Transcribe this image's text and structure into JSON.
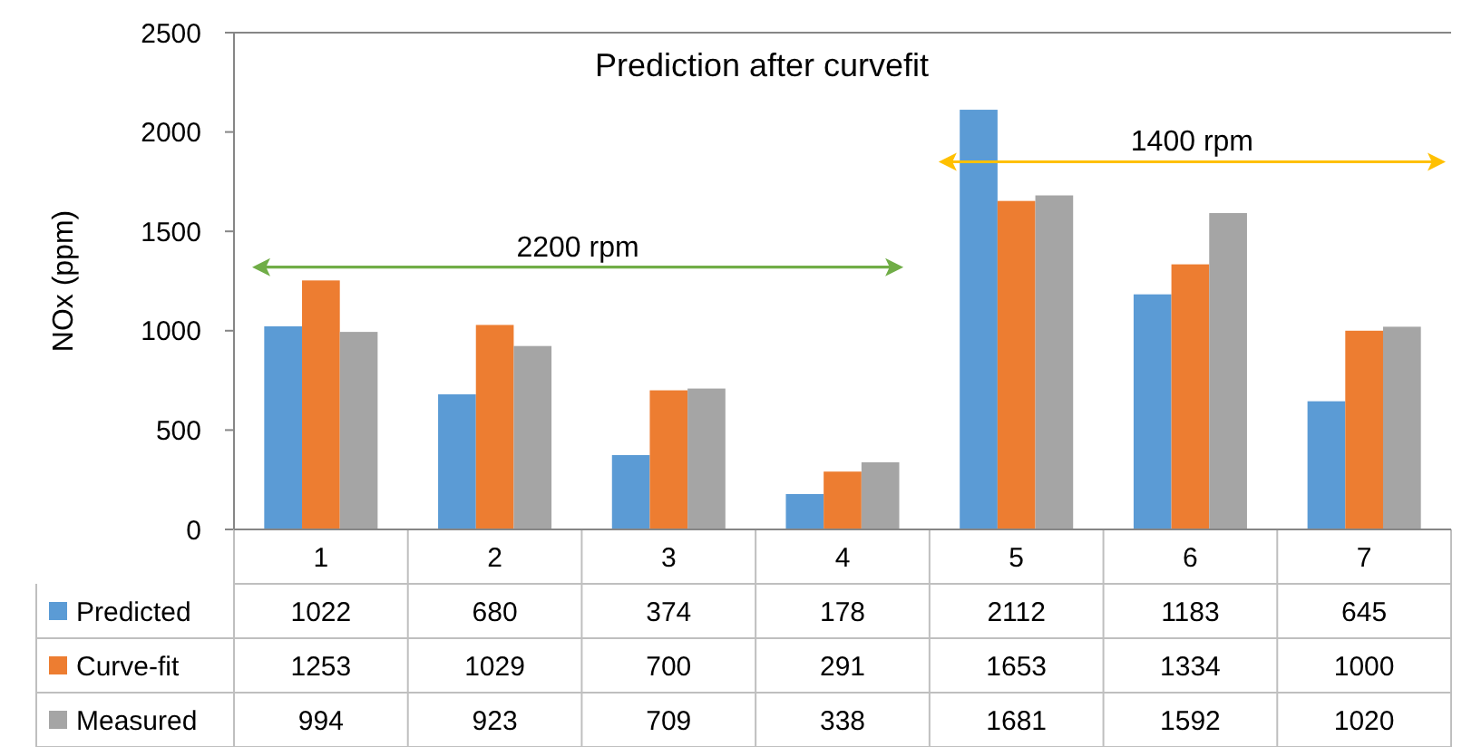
{
  "chart_data": {
    "type": "bar",
    "title": "Prediction after curvefit",
    "ylabel": "NOx (ppm)",
    "categories": [
      "1",
      "2",
      "3",
      "4",
      "5",
      "6",
      "7"
    ],
    "series": [
      {
        "name": "Predicted",
        "color": "#5b9bd5",
        "values": [
          1022,
          680,
          374,
          178,
          2112,
          1183,
          645
        ]
      },
      {
        "name": "Curve-fit",
        "color": "#ed7d31",
        "values": [
          1253,
          1029,
          700,
          291,
          1653,
          1334,
          1000
        ]
      },
      {
        "name": "Measured",
        "color": "#a5a5a5",
        "values": [
          994,
          923,
          709,
          338,
          1681,
          1592,
          1020
        ]
      }
    ],
    "ylim": [
      0,
      2500
    ],
    "yticks": [
      0,
      500,
      1000,
      1500,
      2000,
      2500
    ],
    "grid": false,
    "legend": "bottom left",
    "data_labels": true,
    "annotations": [
      "2200 rpm",
      "1400 rpm"
    ]
  }
}
